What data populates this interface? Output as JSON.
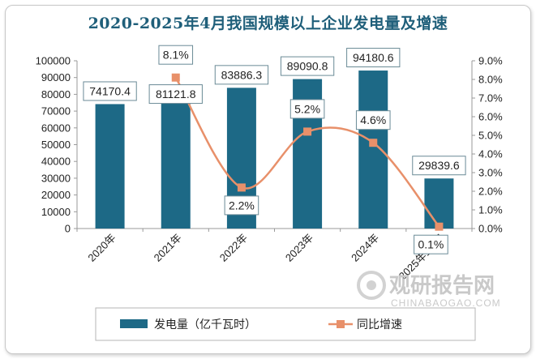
{
  "colors": {
    "bar": "#1d6986",
    "line": "#e8906a",
    "title": "#1f5f7a"
  },
  "watermark": {
    "brand": "观研报告网",
    "site": "CHINABAOGAO.COM"
  },
  "chart_data": {
    "type": "bar",
    "title": "2020-2025年4月我国规模以上企业发电量及增速",
    "categories": [
      "2020年",
      "2021年",
      "2022年",
      "2023年",
      "2024年",
      "2025年1-4月"
    ],
    "series": [
      {
        "name": "发电量（亿千瓦时）",
        "type": "bar",
        "axis": "left",
        "values": [
          74170.4,
          81121.8,
          83886.3,
          89090.8,
          94180.6,
          29839.6
        ],
        "labels": [
          "74170.4",
          "81121.8",
          "83886.3",
          "89090.8",
          "94180.6",
          "29839.6"
        ]
      },
      {
        "name": "同比增速",
        "type": "line",
        "axis": "right",
        "values": [
          null,
          8.1,
          2.2,
          5.2,
          4.6,
          0.1
        ],
        "labels": [
          "",
          "8.1%",
          "2.2%",
          "5.2%",
          "4.6%",
          "0.1%"
        ]
      }
    ],
    "y_left": {
      "range": [
        0,
        100000
      ],
      "ticks": [
        "0",
        "10000",
        "20000",
        "30000",
        "40000",
        "50000",
        "60000",
        "70000",
        "80000",
        "90000",
        "100000"
      ]
    },
    "y_right": {
      "range": [
        0,
        9
      ],
      "ticks": [
        "0.0%",
        "1.0%",
        "2.0%",
        "3.0%",
        "4.0%",
        "5.0%",
        "6.0%",
        "7.0%",
        "8.0%",
        "9.0%"
      ]
    },
    "grid": false,
    "legend": "bottom"
  }
}
